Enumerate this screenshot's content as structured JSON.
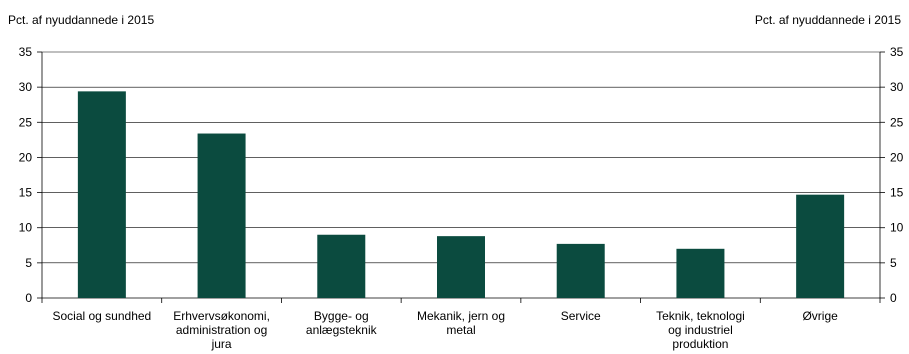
{
  "chart_data": {
    "type": "bar",
    "ylabel_left": "Pct. af nyuddannede i 2015",
    "ylabel_right": "Pct. af nyuddannede i 2015",
    "ylim": [
      0,
      35
    ],
    "yticks": [
      0,
      5,
      10,
      15,
      20,
      25,
      30,
      35
    ],
    "grid": true,
    "categories": [
      "Social og sundhed",
      "Erhvervsøkonomi, administration og jura",
      "Bygge- og anlægsteknik",
      "Mekanik, jern og metal",
      "Service",
      "Teknik, teknologi og industriel produktion",
      "Øvrige"
    ],
    "category_label_lines": [
      [
        "Social og sundhed"
      ],
      [
        "Erhvervsøkonomi,",
        "administration og",
        "jura"
      ],
      [
        "Bygge- og",
        "anlægsteknik"
      ],
      [
        "Mekanik, jern og",
        "metal"
      ],
      [
        "Service"
      ],
      [
        "Teknik, teknologi",
        "og industriel",
        "produktion"
      ],
      [
        "Øvrige"
      ]
    ],
    "values": [
      29.4,
      23.4,
      9.0,
      8.8,
      7.7,
      7.0,
      14.7
    ],
    "colors": {
      "bar": "#0b4b3f",
      "grid": "#000000",
      "axis": "#000000"
    }
  }
}
